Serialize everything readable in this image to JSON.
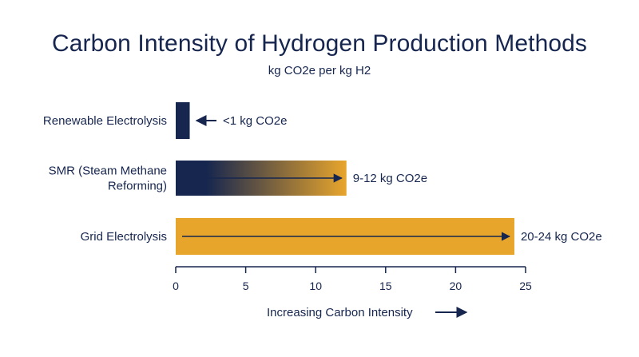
{
  "chart_data": {
    "type": "bar",
    "orientation": "horizontal",
    "title": "Carbon Intensity of Hydrogen Production Methods",
    "subtitle": "kg CO2e per kg H2",
    "categories": [
      [
        "Renewable Electrolysis"
      ],
      [
        "SMR (Steam Methane",
        "Reforming)"
      ],
      [
        "Grid Electrolysis"
      ]
    ],
    "values": [
      1,
      12.2,
      24.2
    ],
    "data_labels": [
      "<1 kg CO2e",
      "9-12 kg CO2e",
      "20-24 kg CO2e"
    ],
    "xlabel": "Increasing Carbon Intensity",
    "xlim": [
      0,
      25
    ],
    "xticks": [
      0,
      5,
      10,
      15,
      20,
      25
    ],
    "grid": false,
    "colors": {
      "navy": "#16264f",
      "gold": "#e8a52c"
    }
  }
}
